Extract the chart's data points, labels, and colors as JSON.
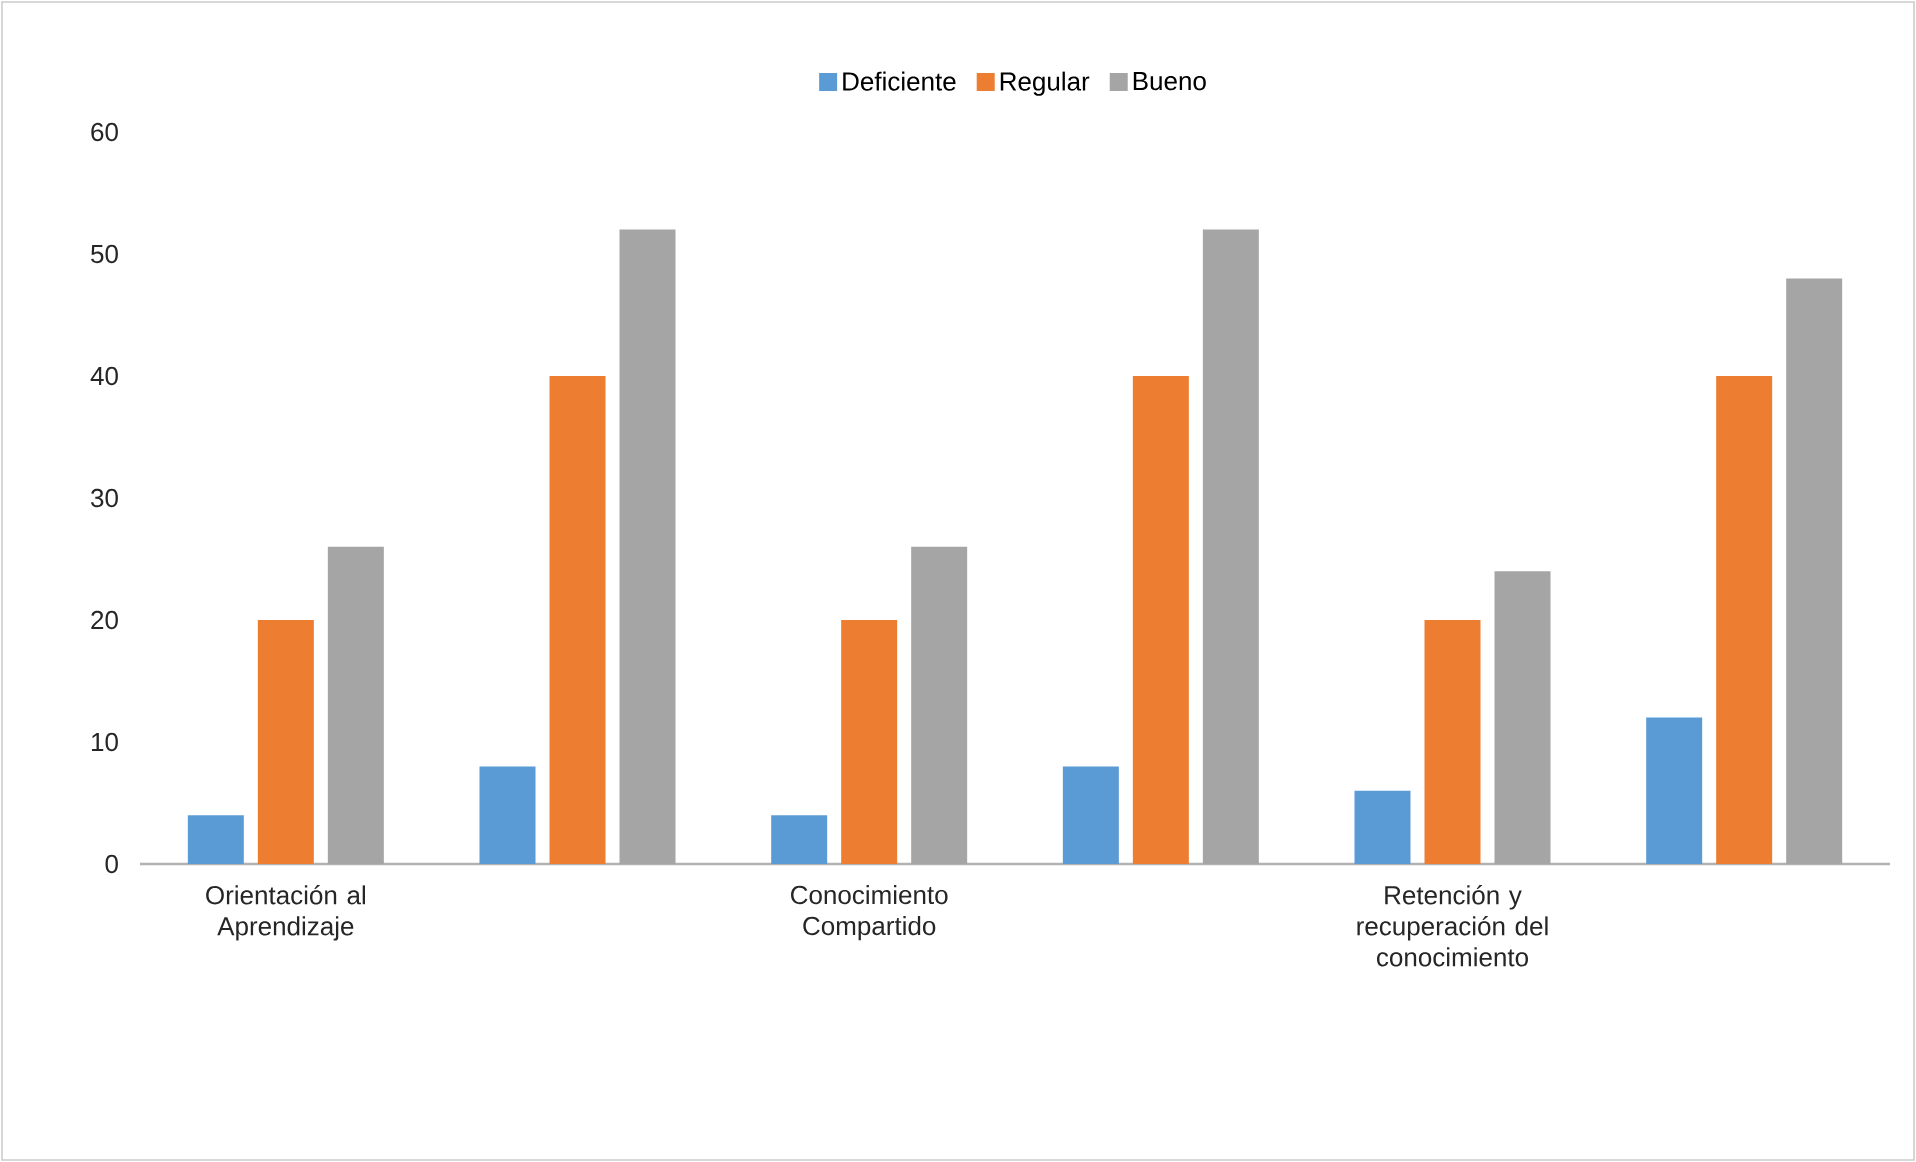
{
  "chart_data": {
    "type": "bar",
    "categories": [
      "Orientación al Aprendizaje",
      null,
      "Conocimiento Compartido",
      null,
      "Retención y recuperación del conocimiento",
      null
    ],
    "series": [
      {
        "name": "Deficiente",
        "color": "#5b9bd5",
        "values": [
          4,
          8,
          4,
          8,
          6,
          12
        ]
      },
      {
        "name": "Regular",
        "color": "#ed7d31",
        "values": [
          20,
          40,
          20,
          40,
          20,
          40
        ]
      },
      {
        "name": "Bueno",
        "color": "#a5a5a5",
        "values": [
          26,
          52,
          26,
          52,
          24,
          48
        ]
      }
    ],
    "ylim": [
      0,
      60
    ],
    "yticks": [
      0,
      10,
      20,
      30,
      40,
      50,
      60
    ],
    "legend": "top"
  }
}
